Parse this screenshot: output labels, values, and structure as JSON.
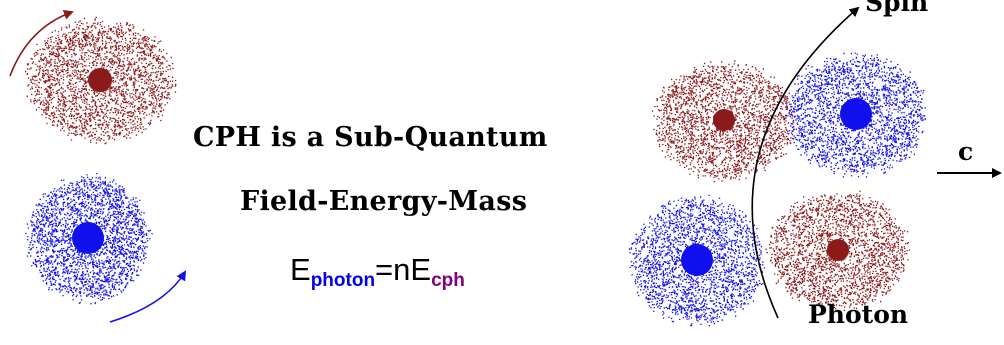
{
  "title": {
    "line1": "CPH is a Sub-Quantum",
    "line2": "Field-Energy-Mass"
  },
  "formula": {
    "main_symbol": "E",
    "photon_subscript": "photon",
    "equals_n": "=nE",
    "cph_subscript": "cph"
  },
  "labels": {
    "spin": "Spin",
    "photon": "Photon",
    "c": "c"
  },
  "colors": {
    "red_particle": "#8b1a1a",
    "blue_particle": "#1010ee",
    "subscript_photon": "#0000ee",
    "subscript_cph": "#800080",
    "arrow_black": "#000000",
    "arrow_red": "#8b1a1a",
    "arrow_blue": "#1010ee"
  }
}
